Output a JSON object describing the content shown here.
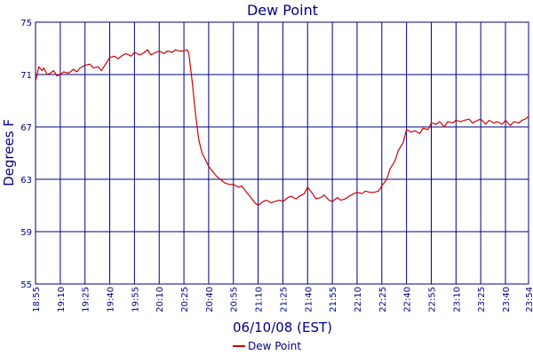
{
  "chart_data": {
    "type": "line",
    "title": "Dew Point",
    "xlabel": "06/10/08 (EST)",
    "ylabel": "Degrees F",
    "ylim": [
      55,
      75
    ],
    "xlim": [
      "18:55",
      "23:54"
    ],
    "y_ticks": [
      55,
      59,
      63,
      67,
      71,
      75
    ],
    "x_ticks": [
      "18:55",
      "19:10",
      "19:25",
      "19:40",
      "19:55",
      "20:10",
      "20:25",
      "20:40",
      "20:55",
      "21:10",
      "21:25",
      "21:40",
      "21:55",
      "22:10",
      "22:25",
      "22:40",
      "22:55",
      "23:10",
      "23:25",
      "23:40",
      "23:54"
    ],
    "grid": true,
    "legend_position": "bottom-center",
    "series": [
      {
        "name": "Dew Point",
        "color": "#cc0000",
        "x": [
          "18:55",
          "18:57",
          "18:59",
          "19:00",
          "19:02",
          "19:04",
          "19:06",
          "19:08",
          "19:10",
          "19:12",
          "19:15",
          "19:18",
          "19:20",
          "19:22",
          "19:25",
          "19:28",
          "19:30",
          "19:33",
          "19:35",
          "19:38",
          "19:40",
          "19:43",
          "19:45",
          "19:48",
          "19:50",
          "19:53",
          "19:55",
          "19:58",
          "20:00",
          "20:03",
          "20:05",
          "20:08",
          "20:10",
          "20:13",
          "20:15",
          "20:18",
          "20:20",
          "20:22",
          "20:25",
          "20:27",
          "20:28",
          "20:30",
          "20:32",
          "20:34",
          "20:36",
          "20:38",
          "20:40",
          "20:43",
          "20:45",
          "20:48",
          "20:50",
          "20:53",
          "20:55",
          "20:58",
          "21:00",
          "21:03",
          "21:05",
          "21:08",
          "21:10",
          "21:13",
          "21:15",
          "21:18",
          "21:20",
          "21:23",
          "21:25",
          "21:28",
          "21:30",
          "21:33",
          "21:35",
          "21:38",
          "21:40",
          "21:43",
          "21:45",
          "21:48",
          "21:50",
          "21:53",
          "21:55",
          "21:58",
          "22:00",
          "22:03",
          "22:05",
          "22:08",
          "22:10",
          "22:13",
          "22:15",
          "22:18",
          "22:20",
          "22:23",
          "22:25",
          "22:28",
          "22:30",
          "22:33",
          "22:35",
          "22:38",
          "22:40",
          "22:43",
          "22:45",
          "22:48",
          "22:50",
          "22:53",
          "22:55",
          "22:58",
          "23:00",
          "23:03",
          "23:05",
          "23:08",
          "23:10",
          "23:13",
          "23:15",
          "23:18",
          "23:20",
          "23:23",
          "23:25",
          "23:28",
          "23:30",
          "23:33",
          "23:35",
          "23:38",
          "23:40",
          "23:43",
          "23:45",
          "23:48",
          "23:50",
          "23:52",
          "23:54"
        ],
        "values": [
          70.5,
          71.6,
          71.3,
          71.5,
          71.0,
          71.1,
          71.3,
          70.9,
          71.0,
          71.2,
          71.1,
          71.4,
          71.2,
          71.5,
          71.7,
          71.8,
          71.5,
          71.6,
          71.3,
          71.9,
          72.3,
          72.4,
          72.2,
          72.5,
          72.6,
          72.4,
          72.7,
          72.5,
          72.6,
          72.9,
          72.5,
          72.7,
          72.8,
          72.6,
          72.8,
          72.7,
          72.9,
          72.8,
          72.8,
          72.9,
          72.6,
          70.5,
          68.0,
          66.0,
          65.0,
          64.5,
          64.0,
          63.5,
          63.2,
          62.9,
          62.7,
          62.6,
          62.6,
          62.4,
          62.5,
          62.0,
          61.7,
          61.2,
          61.0,
          61.3,
          61.4,
          61.2,
          61.3,
          61.4,
          61.3,
          61.6,
          61.7,
          61.5,
          61.7,
          61.9,
          62.4,
          61.9,
          61.5,
          61.6,
          61.8,
          61.4,
          61.3,
          61.6,
          61.4,
          61.5,
          61.7,
          61.9,
          62.0,
          61.9,
          62.1,
          62.0,
          62.0,
          62.1,
          62.5,
          63.0,
          63.8,
          64.4,
          65.2,
          65.8,
          66.8,
          66.6,
          66.7,
          66.5,
          66.9,
          66.8,
          67.3,
          67.2,
          67.4,
          67.0,
          67.4,
          67.3,
          67.5,
          67.4,
          67.5,
          67.6,
          67.3,
          67.5,
          67.6,
          67.2,
          67.5,
          67.3,
          67.4,
          67.2,
          67.5,
          67.1,
          67.4,
          67.3,
          67.5,
          67.6,
          67.8
        ]
      }
    ]
  }
}
